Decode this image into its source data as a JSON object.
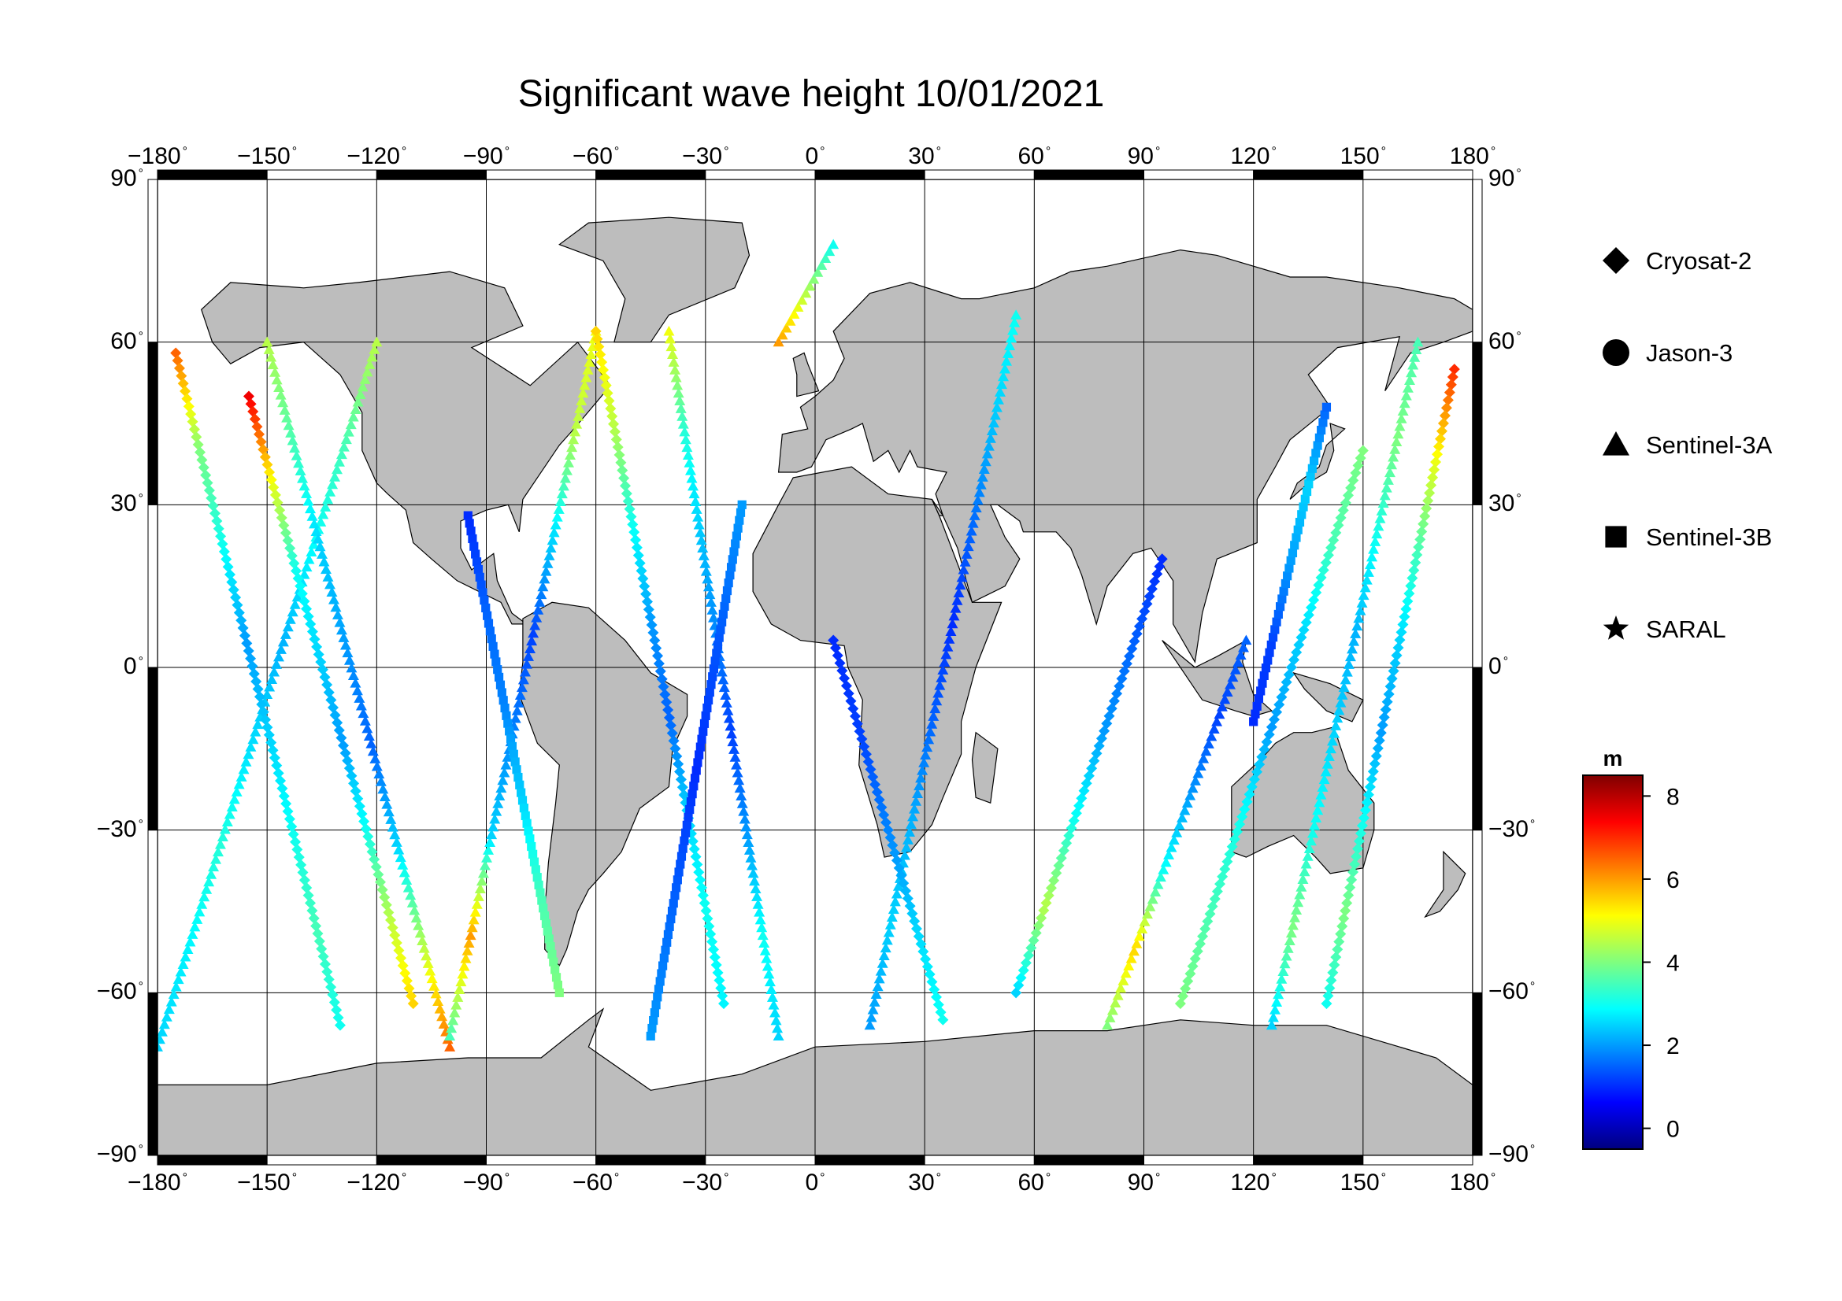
{
  "title": "Significant wave height 10/01/2021",
  "map": {
    "projection": "equirectangular",
    "lon_range": [
      -180,
      180
    ],
    "lat_range": [
      -90,
      90
    ],
    "lon_ticks": [
      -180,
      -150,
      -120,
      -90,
      -60,
      -30,
      0,
      30,
      60,
      90,
      120,
      150,
      180
    ],
    "lat_ticks": [
      -90,
      -60,
      -30,
      0,
      30,
      60,
      90
    ],
    "degree_symbol": "°",
    "gridlines": true,
    "land_color": "#bdbdbd",
    "ocean_color": "#ffffff",
    "grid_color": "#000000"
  },
  "legend": {
    "placement": "right",
    "items": [
      {
        "label": "Cryosat-2",
        "marker": "diamond"
      },
      {
        "label": "Jason-3",
        "marker": "circle"
      },
      {
        "label": "Sentinel-3A",
        "marker": "triangle"
      },
      {
        "label": "Sentinel-3B",
        "marker": "square"
      },
      {
        "label": "SARAL",
        "marker": "star"
      }
    ]
  },
  "colorbar": {
    "unit": "m",
    "range": [
      -0.5,
      8.5
    ],
    "ticks": [
      "8",
      "6",
      "4",
      "2",
      "0"
    ],
    "tick_values": [
      8,
      6,
      4,
      2,
      0
    ],
    "colormap": "jet",
    "colors": [
      "#00007f",
      "#0000ff",
      "#007fff",
      "#00ffff",
      "#7fff7f",
      "#ffff00",
      "#ff7f00",
      "#ff0000",
      "#7f0000"
    ]
  },
  "chart_data": {
    "type": "scatter",
    "xlabel": "",
    "ylabel": "",
    "xlim": [
      -180,
      180
    ],
    "ylim": [
      -90,
      90
    ],
    "value_unit": "m",
    "series": [
      {
        "name": "Sentinel-3A",
        "marker": "triangle",
        "tracks": [
          {
            "lon0": -180,
            "lat0": -70,
            "lon1": -120,
            "lat1": 60,
            "swh": [
              2.5,
              2.8,
              3.2,
              2.6,
              2.2,
              2.9,
              3.5,
              4.5
            ]
          },
          {
            "lon0": -150,
            "lat0": 60,
            "lon1": -100,
            "lat1": -70,
            "swh": [
              4.5,
              3.5,
              2.5,
              2.0,
              1.5,
              2.5,
              4.5,
              6.5
            ]
          },
          {
            "lon0": -100,
            "lat0": -68,
            "lon1": -60,
            "lat1": 62,
            "swh": [
              3.5,
              6.0,
              2.5,
              1.8,
              1.2,
              2.6,
              4.5,
              5.0
            ]
          },
          {
            "lon0": -40,
            "lat0": 62,
            "lon1": -10,
            "lat1": -68,
            "swh": [
              5.0,
              3.2,
              2.4,
              1.8,
              1.2,
              2.0,
              3.0,
              2.5
            ]
          },
          {
            "lon0": -10,
            "lat0": 60,
            "lon1": 5,
            "lat1": 78,
            "swh": [
              6.0,
              5.0,
              4.0,
              3.0
            ]
          },
          {
            "lon0": 15,
            "lat0": -66,
            "lon1": 55,
            "lat1": 65,
            "swh": [
              2.0,
              2.5,
              2.2,
              1.5,
              1.0,
              1.6,
              2.4,
              3.0
            ]
          },
          {
            "lon0": 80,
            "lat0": -66,
            "lon1": 118,
            "lat1": 5,
            "swh": [
              4.0,
              5.5,
              3.0,
              2.0,
              1.2,
              1.5
            ]
          },
          {
            "lon0": 165,
            "lat0": 60,
            "lon1": 125,
            "lat1": -66,
            "swh": [
              3.5,
              4.0,
              3.0,
              2.2,
              2.5,
              3.0,
              4.0,
              2.5
            ]
          }
        ]
      },
      {
        "name": "Cryosat-2",
        "marker": "diamond",
        "tracks": [
          {
            "lon0": -175,
            "lat0": 58,
            "lon1": -130,
            "lat1": -66,
            "swh": [
              6.5,
              4.0,
              3.0,
              2.0,
              2.5,
              3.0,
              3.5,
              3.0
            ]
          },
          {
            "lon0": -155,
            "lat0": 50,
            "lon1": -110,
            "lat1": -62,
            "swh": [
              7.5,
              5.0,
              3.0,
              2.5,
              2.0,
              3.0,
              4.5,
              5.5
            ]
          },
          {
            "lon0": -60,
            "lat0": 62,
            "lon1": -25,
            "lat1": -62,
            "swh": [
              5.5,
              4.5,
              3.0,
              2.0,
              1.5,
              2.5,
              3.0,
              2.8
            ]
          },
          {
            "lon0": 5,
            "lat0": 5,
            "lon1": 35,
            "lat1": -65,
            "swh": [
              1.0,
              1.2,
              1.8,
              2.5,
              3.0
            ]
          },
          {
            "lon0": 55,
            "lat0": -60,
            "lon1": 95,
            "lat1": 20,
            "swh": [
              2.5,
              4.5,
              3.0,
              2.0,
              1.5,
              1.0
            ]
          },
          {
            "lon0": 100,
            "lat0": -62,
            "lon1": 150,
            "lat1": 40,
            "swh": [
              4.0,
              3.5,
              3.0,
              2.0,
              2.5,
              3.5,
              4.0
            ]
          },
          {
            "lon0": 175,
            "lat0": 55,
            "lon1": 140,
            "lat1": -62,
            "swh": [
              7.0,
              5.0,
              3.5,
              2.5,
              2.0,
              3.0,
              4.0,
              3.0
            ]
          }
        ]
      },
      {
        "name": "Sentinel-3B",
        "marker": "square",
        "tracks": [
          {
            "lon0": -95,
            "lat0": 28,
            "lon1": -70,
            "lat1": -60,
            "swh": [
              1.0,
              1.5,
              1.8,
              2.5,
              3.5,
              4.0
            ]
          },
          {
            "lon0": -45,
            "lat0": -68,
            "lon1": -20,
            "lat1": 30,
            "swh": [
              2.0,
              1.5,
              1.0,
              1.4,
              2.0
            ]
          },
          {
            "lon0": 120,
            "lat0": -10,
            "lon1": 140,
            "lat1": 48,
            "swh": [
              1.0,
              1.2,
              2.0,
              2.5,
              1.5
            ]
          }
        ]
      }
    ]
  }
}
